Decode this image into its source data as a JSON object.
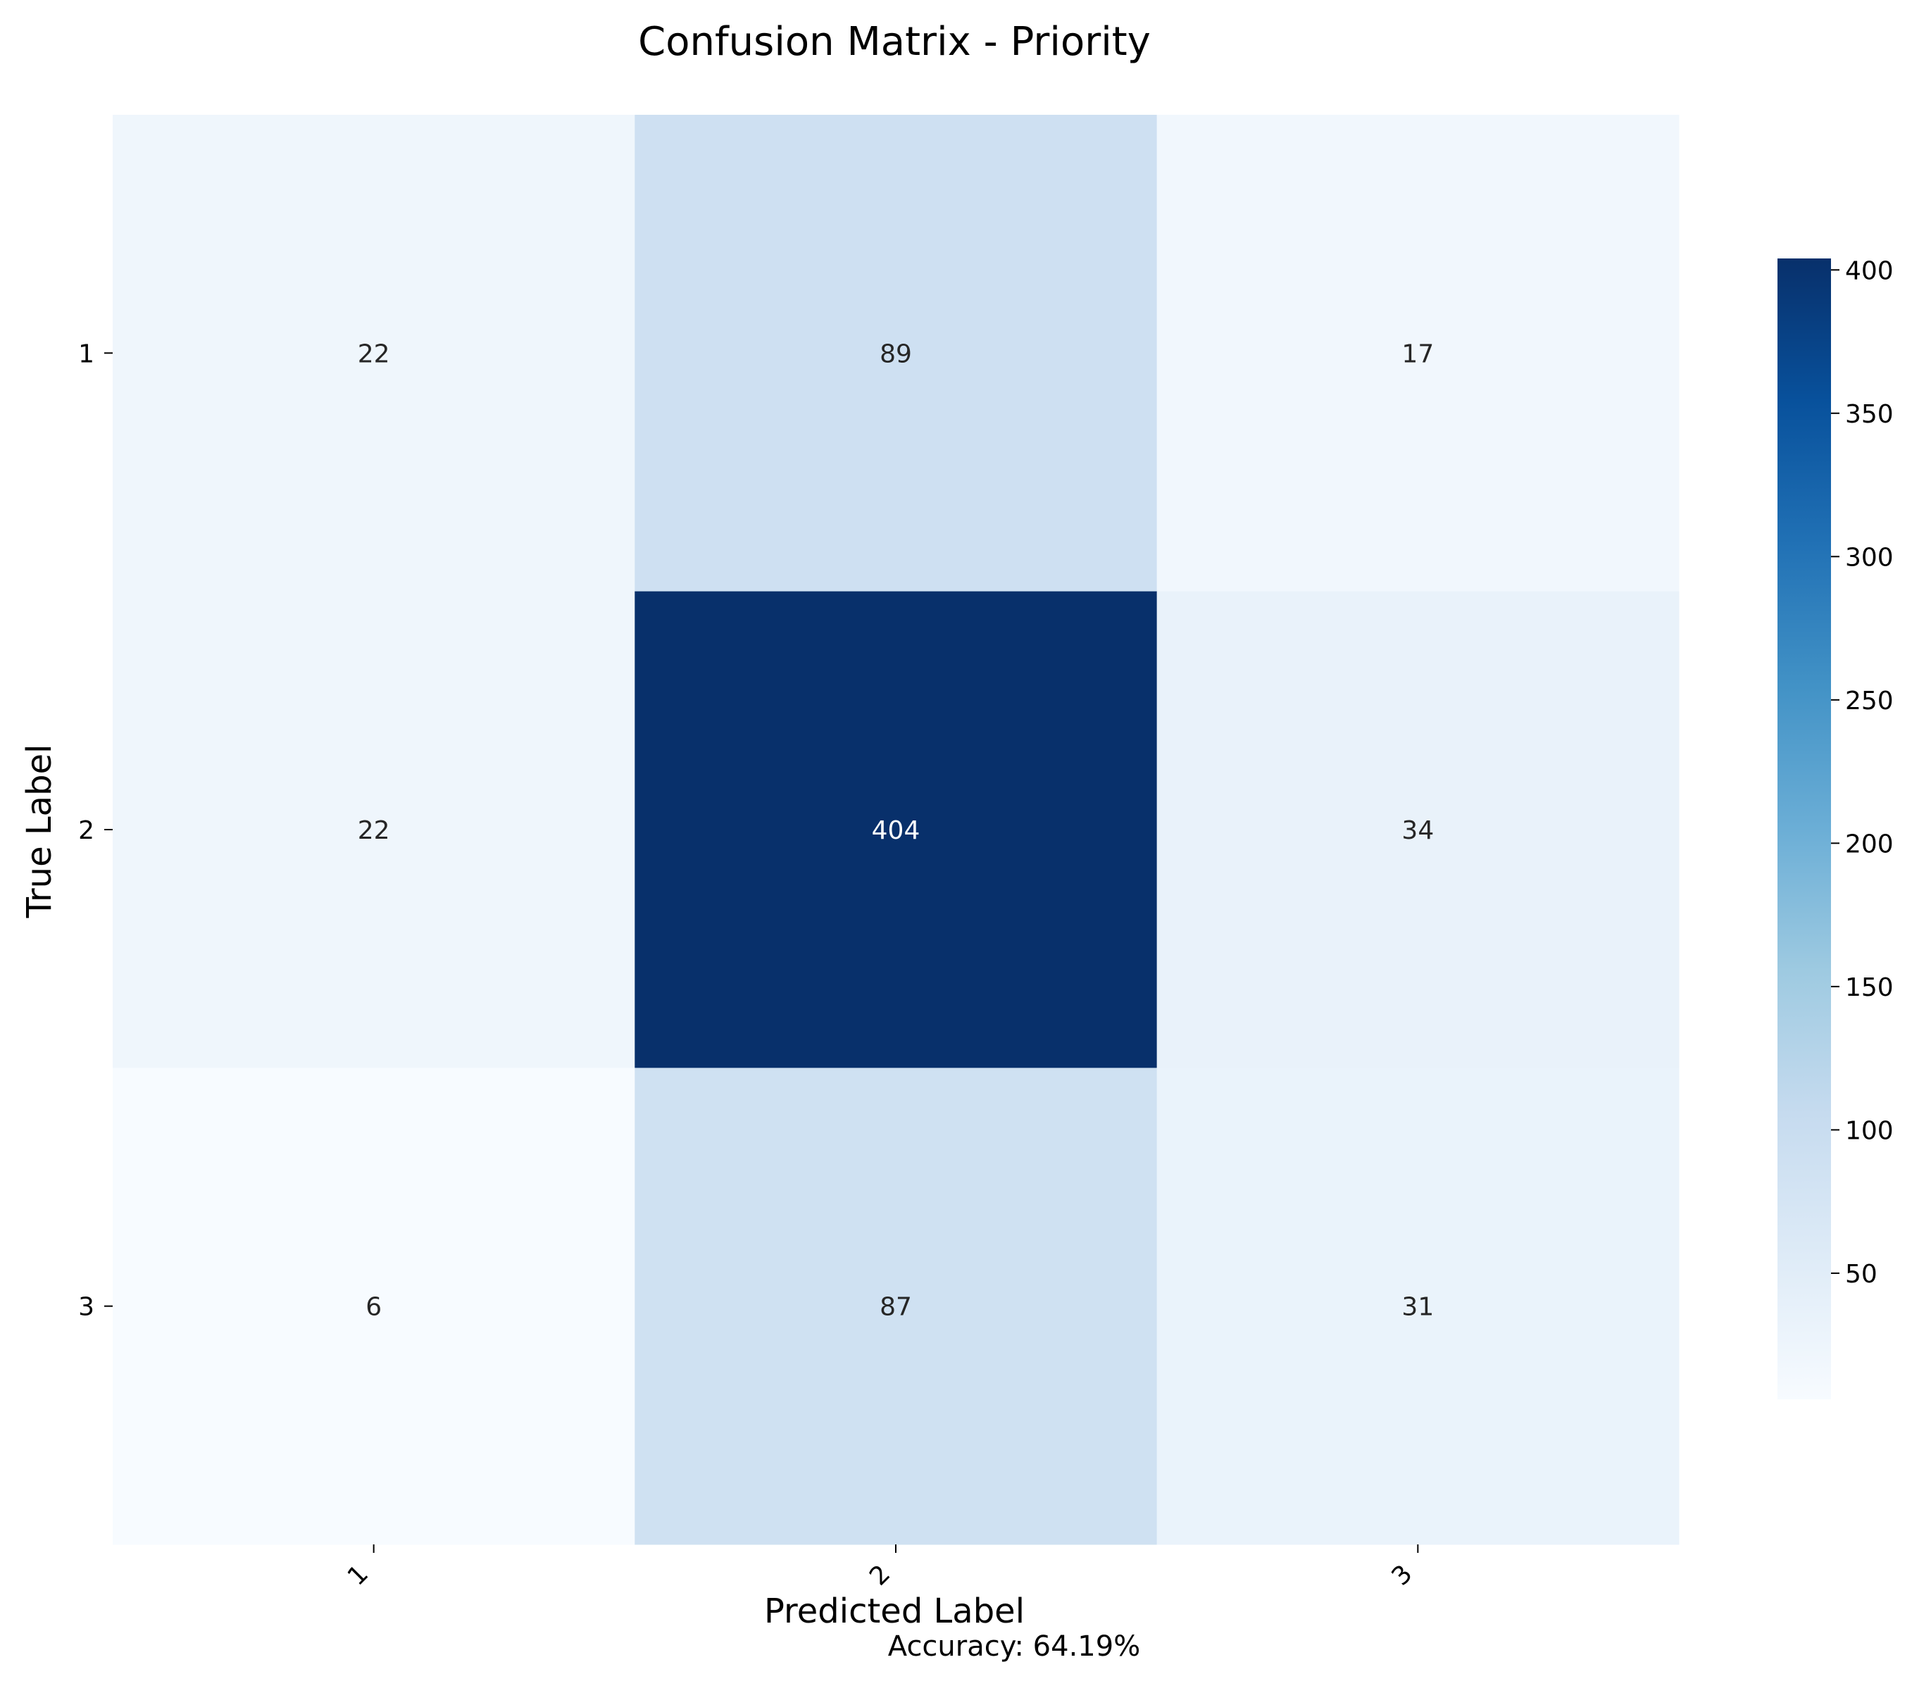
{
  "chart_data": {
    "type": "heatmap",
    "title": "Confusion Matrix - Priority",
    "xlabel": "Predicted Label",
    "ylabel": "True Label",
    "x_categories": [
      "1",
      "2",
      "3"
    ],
    "y_categories": [
      "1",
      "2",
      "3"
    ],
    "matrix": [
      [
        22,
        89,
        17
      ],
      [
        22,
        404,
        34
      ],
      [
        6,
        87,
        31
      ]
    ],
    "colormap": "Blues",
    "colorbar": {
      "range": [
        6,
        404
      ],
      "ticks": [
        "50",
        "100",
        "150",
        "200",
        "250",
        "300",
        "350",
        "400"
      ]
    },
    "annotation": "Accuracy: 64.19%"
  }
}
